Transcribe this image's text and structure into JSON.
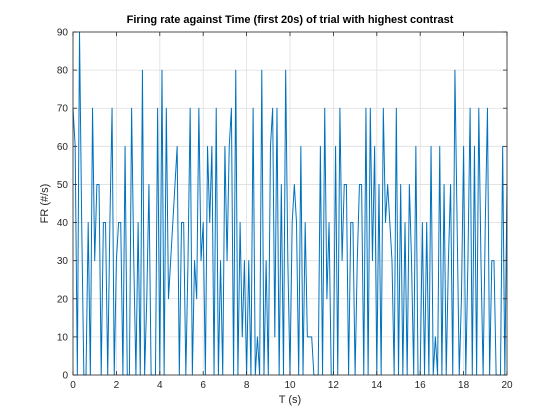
{
  "chart_data": {
    "type": "line",
    "title": "Firing rate against Time (first 20s) of trial with highest contrast",
    "xlabel": "T (s)",
    "ylabel": "FR (#/s)",
    "xlim": [
      0,
      20
    ],
    "ylim": [
      0,
      90
    ],
    "xticks": [
      "0",
      "2",
      "4",
      "6",
      "8",
      "10",
      "12",
      "14",
      "16",
      "18",
      "20"
    ],
    "yticks": [
      "0",
      "10",
      "20",
      "30",
      "40",
      "50",
      "60",
      "70",
      "80",
      "90"
    ],
    "grid": true,
    "line_color": "#0072BD",
    "grid_color": "#DFDFDF",
    "series": [
      {
        "x": [
          0,
          0.1,
          0.2,
          0.3,
          0.4,
          0.5,
          0.6,
          0.7,
          0.8,
          0.9,
          1.0,
          1.1,
          1.2,
          1.3,
          1.4,
          1.5,
          1.6,
          1.7,
          1.8,
          1.9,
          2.0,
          2.1,
          2.2,
          2.3,
          2.4,
          2.5,
          2.6,
          2.7,
          2.8,
          2.9,
          3.0,
          3.1,
          3.2,
          3.3,
          3.4,
          3.5,
          3.6,
          3.7,
          3.8,
          3.9,
          4.0,
          4.1,
          4.2,
          4.3,
          4.4,
          4.5,
          4.6,
          4.7,
          4.8,
          4.9,
          5.0,
          5.1,
          5.2,
          5.3,
          5.4,
          5.5,
          5.6,
          5.7,
          5.8,
          5.9,
          6.0,
          6.1,
          6.2,
          6.3,
          6.4,
          6.5,
          6.6,
          6.7,
          6.8,
          6.9,
          7.0,
          7.1,
          7.2,
          7.3,
          7.4,
          7.5,
          7.6,
          7.7,
          7.8,
          7.9,
          8.0,
          8.1,
          8.2,
          8.3,
          8.4,
          8.5,
          8.6,
          8.7,
          8.8,
          8.9,
          9.0,
          9.1,
          9.2,
          9.3,
          9.4,
          9.5,
          9.6,
          9.7,
          9.8,
          9.9,
          10.0,
          10.1,
          10.2,
          10.3,
          10.4,
          10.5,
          10.6,
          10.7,
          10.8,
          10.9,
          11.0,
          11.1,
          11.2,
          11.3,
          11.4,
          11.5,
          11.6,
          11.7,
          11.8,
          11.9,
          12.0,
          12.1,
          12.2,
          12.3,
          12.4,
          12.5,
          12.6,
          12.7,
          12.8,
          12.9,
          13.0,
          13.1,
          13.2,
          13.3,
          13.4,
          13.5,
          13.6,
          13.7,
          13.8,
          13.9,
          14.0,
          14.1,
          14.2,
          14.3,
          14.4,
          14.5,
          14.6,
          14.7,
          14.8,
          14.9,
          15.0,
          15.1,
          15.2,
          15.3,
          15.4,
          15.5,
          15.6,
          15.7,
          15.8,
          15.9,
          16.0,
          16.1,
          16.2,
          16.3,
          16.4,
          16.5,
          16.6,
          16.7,
          16.8,
          16.9,
          17.0,
          17.1,
          17.2,
          17.3,
          17.4,
          17.5,
          17.6,
          17.7,
          17.8,
          17.9,
          18.0,
          18.1,
          18.2,
          18.3,
          18.4,
          18.5,
          18.6,
          18.7,
          18.8,
          18.9,
          19.0,
          19.1,
          19.2,
          19.3,
          19.4,
          19.5,
          19.6,
          19.7,
          19.8,
          19.9,
          20.0
        ],
        "values": [
          70,
          60,
          0,
          90,
          40,
          0,
          0,
          40,
          0,
          70,
          30,
          50,
          50,
          0,
          40,
          40,
          0,
          40,
          70,
          0,
          30,
          40,
          40,
          0,
          60,
          0,
          0,
          70,
          30,
          0,
          40,
          0,
          80,
          0,
          20,
          50,
          0,
          0,
          0,
          70,
          0,
          80,
          0,
          70,
          20,
          30,
          40,
          50,
          60,
          0,
          40,
          40,
          0,
          30,
          70,
          0,
          30,
          20,
          70,
          30,
          40,
          0,
          60,
          40,
          60,
          0,
          70,
          0,
          30,
          0,
          60,
          30,
          60,
          70,
          0,
          80,
          0,
          40,
          10,
          30,
          0,
          30,
          0,
          70,
          0,
          10,
          0,
          80,
          0,
          30,
          0,
          60,
          70,
          10,
          70,
          0,
          50,
          0,
          80,
          30,
          0,
          40,
          50,
          40,
          0,
          60,
          0,
          40,
          10,
          10,
          10,
          0,
          0,
          0,
          60,
          0,
          70,
          20,
          40,
          0,
          0,
          60,
          0,
          70,
          30,
          50,
          50,
          0,
          40,
          40,
          0,
          30,
          50,
          50,
          0,
          70,
          0,
          70,
          30,
          60,
          0,
          50,
          0,
          70,
          40,
          50,
          40,
          30,
          0,
          70,
          0,
          50,
          0,
          40,
          0,
          50,
          30,
          0,
          60,
          0,
          0,
          40,
          0,
          40,
          0,
          60,
          0,
          10,
          0,
          60,
          0,
          50,
          0,
          30,
          50,
          0,
          80,
          40,
          0,
          20,
          60,
          0,
          30,
          70,
          0,
          60,
          0,
          70,
          30,
          0,
          40,
          70,
          0,
          30,
          30,
          0,
          0,
          0,
          60,
          0,
          50
        ]
      }
    ]
  }
}
